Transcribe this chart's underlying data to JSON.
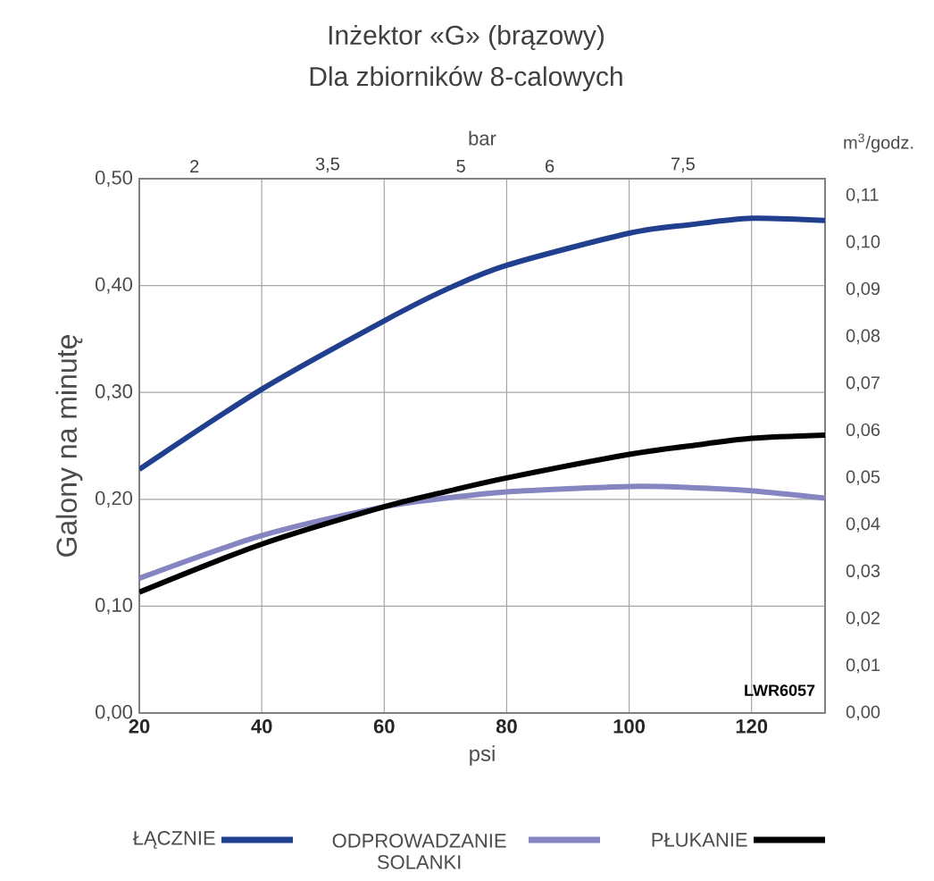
{
  "chart_data": {
    "type": "line",
    "title": "Inżektor «G» (brązowy)",
    "subtitle": "Dla zbiorników 8-calowych",
    "xlabel": "psi",
    "ylabel": "Galony na minutę",
    "y2label": "m$^{3}$/godz.",
    "x2label": "bar",
    "x": [
      20,
      40,
      60,
      70,
      80,
      100,
      110,
      120,
      132
    ],
    "series": [
      {
        "name": "ŁĄCZNIE",
        "color": "#213f8f",
        "values": [
          0.228,
          0.303,
          0.367,
          0.396,
          0.419,
          0.449,
          0.457,
          0.463,
          0.461
        ]
      },
      {
        "name": "ODPROWADZANIE SOLANKI",
        "color": "#8585c2",
        "values": [
          0.126,
          0.166,
          0.193,
          0.201,
          0.207,
          0.212,
          0.211,
          0.208,
          0.201
        ]
      },
      {
        "name": "PŁUKANIE",
        "color": "#000000",
        "values": [
          0.113,
          0.158,
          0.193,
          0.207,
          0.22,
          0.242,
          0.25,
          0.257,
          0.26
        ]
      }
    ],
    "xlim": [
      20,
      132
    ],
    "xticks": [
      20,
      40,
      60,
      80,
      100,
      120
    ],
    "ylim": [
      0,
      0.5
    ],
    "yticks": [
      {
        "value": 0,
        "label": "0,00"
      },
      {
        "value": 0.1,
        "label": "0,10"
      },
      {
        "value": 0.2,
        "label": "0,20"
      },
      {
        "value": 0.3,
        "label": "0,30"
      },
      {
        "value": 0.4,
        "label": "0,40"
      },
      {
        "value": 0.5,
        "label": "0,50"
      }
    ],
    "y2lim": [
      0,
      0.1136
    ],
    "y2ticks": [
      {
        "value": 0,
        "label": "0,00"
      },
      {
        "value": 0.01,
        "label": "0,01"
      },
      {
        "value": 0.02,
        "label": "0,02"
      },
      {
        "value": 0.03,
        "label": "0,03"
      },
      {
        "value": 0.04,
        "label": "0,04"
      },
      {
        "value": 0.05,
        "label": "0,05"
      },
      {
        "value": 0.06,
        "label": "0,06"
      },
      {
        "value": 0.07,
        "label": "0,07"
      },
      {
        "value": 0.08,
        "label": "0,08"
      },
      {
        "value": 0.09,
        "label": "0,09"
      },
      {
        "value": 0.1,
        "label": "0,10"
      },
      {
        "value": 0.11,
        "label": "0,11"
      }
    ],
    "x2lim": [
      1.38,
      9.1
    ],
    "x2ticks": [
      2,
      {
        "value": 3.5,
        "label": "3,5"
      },
      5,
      6,
      {
        "value": 7.5,
        "label": "7,5"
      }
    ],
    "grid": true,
    "legend": "bottom",
    "annotations": [
      "LWR6057"
    ]
  }
}
